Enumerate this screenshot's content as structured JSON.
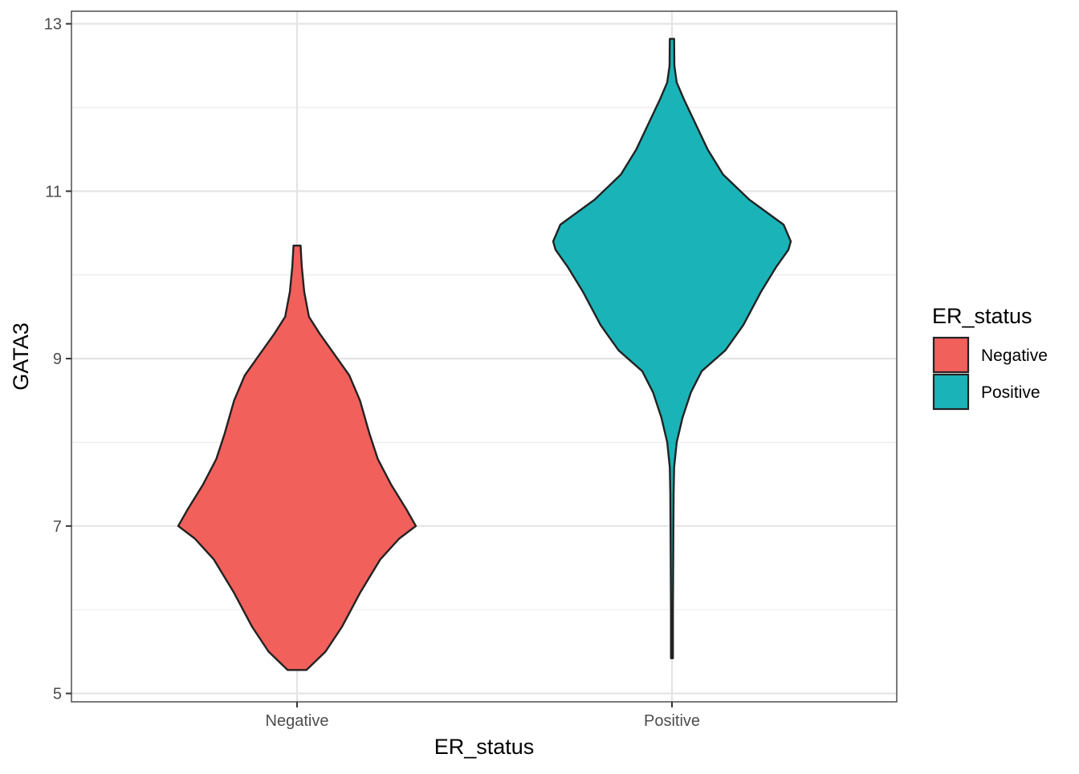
{
  "chart_data": {
    "type": "violin",
    "xlabel": "ER_status",
    "ylabel": "GATA3",
    "categories": [
      "Negative",
      "Positive"
    ],
    "ylim": [
      4.9,
      13.15
    ],
    "yticks": [
      5,
      7,
      9,
      11,
      13
    ],
    "grid": true,
    "legend": {
      "title": "ER_status",
      "position": "right",
      "entries": [
        "Negative",
        "Positive"
      ]
    },
    "colors": {
      "Negative": "#F2605C",
      "Positive": "#1AB4B8",
      "outline": "#222222"
    },
    "series": [
      {
        "category": "Negative",
        "ymin": 5.28,
        "ymax": 10.35,
        "profile": [
          [
            5.28,
            0.08
          ],
          [
            5.5,
            0.24
          ],
          [
            5.8,
            0.38
          ],
          [
            6.2,
            0.53
          ],
          [
            6.6,
            0.7
          ],
          [
            6.85,
            0.86
          ],
          [
            7.0,
            1.0
          ],
          [
            7.2,
            0.92
          ],
          [
            7.5,
            0.79
          ],
          [
            7.8,
            0.68
          ],
          [
            8.1,
            0.61
          ],
          [
            8.5,
            0.53
          ],
          [
            8.8,
            0.44
          ],
          [
            9.0,
            0.34
          ],
          [
            9.3,
            0.19
          ],
          [
            9.5,
            0.1
          ],
          [
            9.8,
            0.06
          ],
          [
            10.1,
            0.04
          ],
          [
            10.35,
            0.03
          ]
        ]
      },
      {
        "category": "Positive",
        "ymin": 5.42,
        "ymax": 12.82,
        "profile": [
          [
            5.42,
            0.008
          ],
          [
            6.0,
            0.008
          ],
          [
            6.5,
            0.01
          ],
          [
            7.0,
            0.012
          ],
          [
            7.4,
            0.014
          ],
          [
            7.7,
            0.018
          ],
          [
            8.0,
            0.04
          ],
          [
            8.3,
            0.09
          ],
          [
            8.6,
            0.16
          ],
          [
            8.85,
            0.25
          ],
          [
            9.1,
            0.45
          ],
          [
            9.4,
            0.6
          ],
          [
            9.8,
            0.75
          ],
          [
            10.1,
            0.88
          ],
          [
            10.3,
            0.98
          ],
          [
            10.4,
            1.0
          ],
          [
            10.6,
            0.94
          ],
          [
            10.9,
            0.65
          ],
          [
            11.2,
            0.43
          ],
          [
            11.5,
            0.3
          ],
          [
            11.8,
            0.2
          ],
          [
            12.1,
            0.1
          ],
          [
            12.3,
            0.04
          ],
          [
            12.5,
            0.02
          ],
          [
            12.82,
            0.018
          ]
        ]
      }
    ]
  }
}
